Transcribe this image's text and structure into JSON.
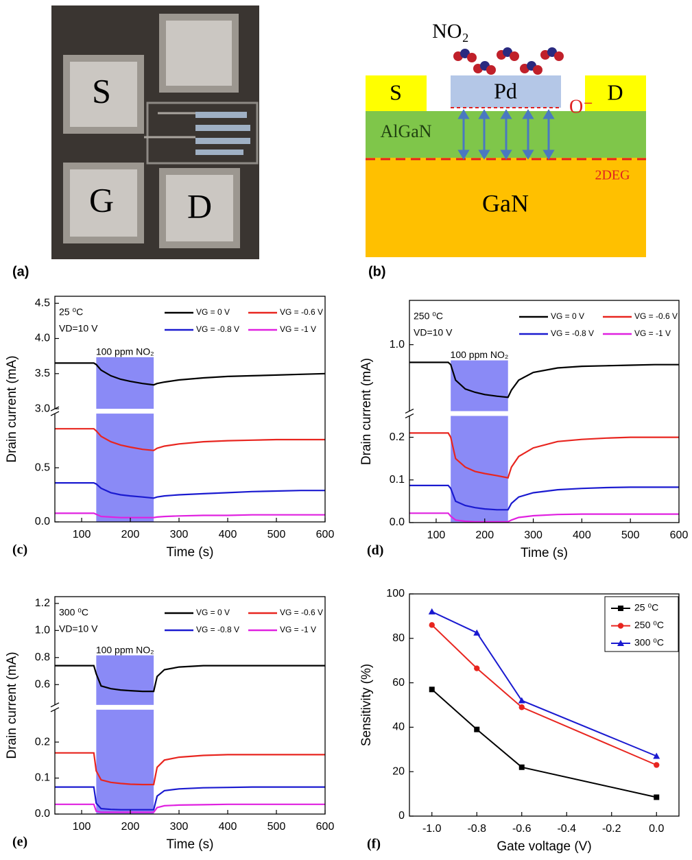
{
  "panel_a": {
    "tag": "(a)",
    "pads": [
      "S",
      "G",
      "D"
    ]
  },
  "panel_b": {
    "tag": "(b)",
    "gas": "NO₂",
    "source": "S",
    "gate": "Pd",
    "drain": "D",
    "ion": "O⁻",
    "barrier": "AlGaN",
    "channel": "2DEG",
    "buffer": "GaN"
  },
  "chart_data": [
    {
      "type": "broken-line",
      "tag": "(c)",
      "xlabel": "Time (s)",
      "ylabel": "Drain current (mA)",
      "annotations": [
        "25 ⁰C",
        "VD=10 V"
      ],
      "exposure_label": "100 ppm NO₂",
      "exposure": [
        130,
        248
      ],
      "exposure_color": "#8a8af6",
      "x": [
        45,
        75,
        100,
        125,
        130,
        140,
        160,
        180,
        200,
        225,
        248,
        255,
        270,
        300,
        350,
        400,
        450,
        500,
        550,
        600
      ],
      "xlim": [
        45,
        600
      ],
      "xticks": [
        100,
        200,
        300,
        400,
        500,
        600
      ],
      "ylim": [
        0,
        1
      ],
      "yticks": [
        {
          "value": 0,
          "label": "0.0"
        },
        0.5
      ],
      "ylim_upper": [
        3,
        4.6
      ],
      "yticks_upper": [
        {
          "value": 3,
          "label": "3.0"
        },
        3.5,
        {
          "value": 4,
          "label": "4.0"
        },
        4.5
      ],
      "series": [
        {
          "name": "VG = 0 V",
          "color": "#000000",
          "axis": "upper",
          "values": [
            3.65,
            3.65,
            3.65,
            3.65,
            3.63,
            3.55,
            3.47,
            3.42,
            3.39,
            3.36,
            3.34,
            3.36,
            3.38,
            3.41,
            3.44,
            3.46,
            3.47,
            3.48,
            3.49,
            3.5
          ]
        },
        {
          "name": "VG = -0.6 V",
          "color": "#e8251f",
          "values": [
            0.86,
            0.86,
            0.86,
            0.86,
            0.84,
            0.79,
            0.74,
            0.71,
            0.69,
            0.67,
            0.66,
            0.68,
            0.7,
            0.72,
            0.74,
            0.75,
            0.755,
            0.76,
            0.76,
            0.76
          ]
        },
        {
          "name": "VG = -0.8 V",
          "color": "#1a1ad0",
          "values": [
            0.36,
            0.36,
            0.36,
            0.36,
            0.35,
            0.31,
            0.27,
            0.25,
            0.24,
            0.23,
            0.22,
            0.23,
            0.24,
            0.25,
            0.26,
            0.27,
            0.28,
            0.285,
            0.29,
            0.29
          ]
        },
        {
          "name": "VG = -1 V",
          "color": "#e020e0",
          "values": [
            0.08,
            0.08,
            0.08,
            0.08,
            0.07,
            0.05,
            0.045,
            0.04,
            0.04,
            0.04,
            0.04,
            0.045,
            0.05,
            0.055,
            0.06,
            0.06,
            0.065,
            0.065,
            0.065,
            0.065
          ]
        }
      ]
    },
    {
      "type": "broken-line",
      "tag": "(d)",
      "xlabel": "Time (s)",
      "ylabel": "Drain current (mA)",
      "annotations": [
        "250 ⁰C",
        "VD=10 V"
      ],
      "exposure_label": "100 ppm NO₂",
      "exposure": [
        130,
        248
      ],
      "exposure_color": "#8a8af6",
      "x": [
        45,
        75,
        100,
        125,
        130,
        140,
        160,
        180,
        200,
        225,
        248,
        255,
        270,
        300,
        350,
        400,
        450,
        500,
        550,
        600
      ],
      "xlim": [
        45,
        600
      ],
      "xticks": [
        100,
        200,
        300,
        400,
        500,
        600
      ],
      "ylim": [
        0,
        0.25
      ],
      "yticks": [
        {
          "value": 0,
          "label": "0.0"
        },
        0.1,
        0.2
      ],
      "ylim_upper": [
        0.4,
        1.4
      ],
      "yticks_upper": [
        {
          "value": 1,
          "label": "1.0"
        }
      ],
      "series": [
        {
          "name": "VG = 0 V",
          "color": "#000000",
          "axis": "upper",
          "values": [
            0.84,
            0.84,
            0.84,
            0.84,
            0.82,
            0.68,
            0.6,
            0.57,
            0.55,
            0.535,
            0.525,
            0.59,
            0.68,
            0.75,
            0.79,
            0.805,
            0.81,
            0.815,
            0.82,
            0.82
          ]
        },
        {
          "name": "VG = -0.6 V",
          "color": "#e8251f",
          "values": [
            0.21,
            0.21,
            0.21,
            0.21,
            0.2,
            0.15,
            0.13,
            0.12,
            0.115,
            0.11,
            0.105,
            0.13,
            0.155,
            0.175,
            0.19,
            0.195,
            0.198,
            0.2,
            0.2,
            0.2
          ]
        },
        {
          "name": "VG = -0.8 V",
          "color": "#1a1ad0",
          "values": [
            0.087,
            0.087,
            0.087,
            0.087,
            0.08,
            0.05,
            0.04,
            0.035,
            0.032,
            0.03,
            0.03,
            0.045,
            0.06,
            0.07,
            0.077,
            0.08,
            0.082,
            0.083,
            0.083,
            0.083
          ]
        },
        {
          "name": "VG = -1 V",
          "color": "#e020e0",
          "values": [
            0.022,
            0.022,
            0.022,
            0.022,
            0.015,
            0.006,
            0.003,
            0.002,
            0.002,
            0.002,
            0.002,
            0.006,
            0.012,
            0.016,
            0.019,
            0.02,
            0.02,
            0.02,
            0.02,
            0.02
          ]
        }
      ]
    },
    {
      "type": "broken-line",
      "tag": "(e)",
      "xlabel": "Time (s)",
      "ylabel": "Drain current (mA)",
      "annotations": [
        "300 ⁰C",
        "VD=10 V"
      ],
      "exposure_label": "100 ppm NO₂",
      "exposure": [
        130,
        248
      ],
      "exposure_color": "#8a8af6",
      "x": [
        45,
        75,
        100,
        125,
        130,
        140,
        160,
        180,
        200,
        225,
        248,
        255,
        270,
        300,
        350,
        400,
        450,
        500,
        550,
        600
      ],
      "xlim": [
        45,
        600
      ],
      "xticks": [
        100,
        200,
        300,
        400,
        500,
        600
      ],
      "ylim": [
        0,
        0.29
      ],
      "yticks": [
        {
          "value": 0,
          "label": "0.0"
        },
        0.1,
        0.2
      ],
      "ylim_upper": [
        0.45,
        1.25
      ],
      "yticks_upper": [
        0.6,
        0.8,
        {
          "value": 1,
          "label": "1.0"
        },
        1.2
      ],
      "series": [
        {
          "name": "VG = 0 V",
          "color": "#000000",
          "axis": "upper",
          "values": [
            0.74,
            0.74,
            0.74,
            0.74,
            0.68,
            0.59,
            0.57,
            0.56,
            0.555,
            0.55,
            0.55,
            0.66,
            0.71,
            0.73,
            0.74,
            0.74,
            0.74,
            0.74,
            0.74,
            0.74
          ]
        },
        {
          "name": "VG = -0.6 V",
          "color": "#e8251f",
          "values": [
            0.17,
            0.17,
            0.17,
            0.17,
            0.12,
            0.095,
            0.088,
            0.085,
            0.083,
            0.082,
            0.082,
            0.13,
            0.15,
            0.158,
            0.163,
            0.165,
            0.165,
            0.165,
            0.165,
            0.165
          ]
        },
        {
          "name": "VG = -0.8 V",
          "color": "#1a1ad0",
          "values": [
            0.075,
            0.075,
            0.075,
            0.075,
            0.03,
            0.015,
            0.013,
            0.012,
            0.012,
            0.012,
            0.012,
            0.05,
            0.065,
            0.07,
            0.073,
            0.074,
            0.075,
            0.075,
            0.075,
            0.075
          ]
        },
        {
          "name": "VG = -1 V",
          "color": "#e020e0",
          "values": [
            0.027,
            0.027,
            0.027,
            0.027,
            0.008,
            0.005,
            0.005,
            0.005,
            0.005,
            0.005,
            0.005,
            0.018,
            0.023,
            0.025,
            0.026,
            0.027,
            0.027,
            0.027,
            0.027,
            0.027
          ]
        }
      ]
    },
    {
      "type": "line",
      "tag": "(f)",
      "xlabel": "Gate voltage (V)",
      "ylabel": "Sensitivity (%)",
      "legend": "upper right",
      "x": [
        -1,
        -0.8,
        -0.6,
        0
      ],
      "xlim": [
        -1.1,
        0.1
      ],
      "xticks": [
        {
          "value": -1,
          "label": "-1.0"
        },
        -0.8,
        -0.6,
        -0.4,
        -0.2,
        {
          "value": 0,
          "label": "0.0"
        }
      ],
      "ylim": [
        0,
        100
      ],
      "yticks": [
        0,
        20,
        40,
        60,
        80,
        100
      ],
      "series": [
        {
          "name": "25 ⁰C",
          "color": "#000000",
          "marker": "square",
          "values": [
            57,
            39,
            22,
            8.5
          ]
        },
        {
          "name": "250 ⁰C",
          "color": "#e8251f",
          "marker": "circle",
          "values": [
            86,
            66.5,
            49,
            23
          ]
        },
        {
          "name": "300 ⁰C",
          "color": "#1a1ad0",
          "marker": "triangle",
          "values": [
            92,
            82.5,
            52,
            27
          ]
        }
      ]
    }
  ]
}
